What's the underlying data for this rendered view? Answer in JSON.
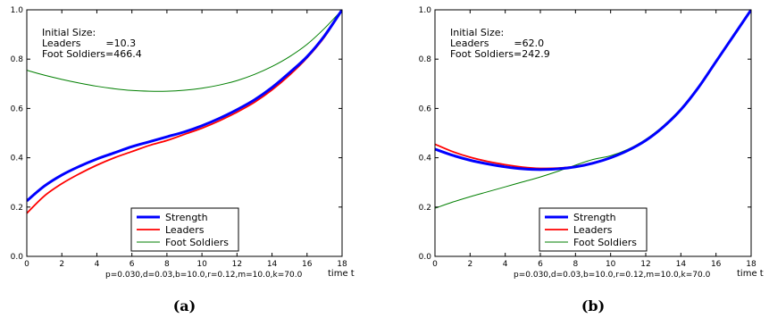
{
  "chart_data": [
    {
      "type": "line",
      "caption": "(a)",
      "xlabel": "time t",
      "ylabel": "",
      "xlim": [
        0,
        18
      ],
      "ylim": [
        0,
        1.0
      ],
      "xticks": [
        0,
        2,
        4,
        6,
        8,
        10,
        12,
        14,
        16,
        18
      ],
      "yticks": [
        "0.0",
        "0.2",
        "0.4",
        "0.6",
        "0.8",
        "1.0"
      ],
      "grid": false,
      "legend_position": "bottom-center",
      "annotation": [
        "Initial Size:",
        "Leaders        =10.3",
        "Foot Soldiers=466.4"
      ],
      "parameters": "p=0.030,d=0.03,b=10.0,r=0.12,m=10.0,k=70.0",
      "x": [
        0,
        1,
        2,
        3,
        4,
        5,
        6,
        7,
        8,
        9,
        10,
        11,
        12,
        13,
        14,
        15,
        16,
        17,
        18
      ],
      "series": [
        {
          "name": "Strength",
          "color": "#0000ff",
          "width": 3,
          "values": [
            0.225,
            0.285,
            0.33,
            0.365,
            0.395,
            0.42,
            0.445,
            0.465,
            0.485,
            0.505,
            0.53,
            0.56,
            0.595,
            0.635,
            0.685,
            0.745,
            0.81,
            0.895,
            1.0
          ]
        },
        {
          "name": "Leaders",
          "color": "#ff0000",
          "width": 1.8,
          "values": [
            0.175,
            0.245,
            0.295,
            0.335,
            0.37,
            0.4,
            0.425,
            0.45,
            0.47,
            0.495,
            0.52,
            0.55,
            0.585,
            0.625,
            0.675,
            0.735,
            0.805,
            0.89,
            1.0
          ]
        },
        {
          "name": "Foot Soldiers",
          "color": "#007f00",
          "width": 1,
          "values": [
            0.755,
            0.735,
            0.718,
            0.703,
            0.69,
            0.68,
            0.673,
            0.67,
            0.67,
            0.674,
            0.682,
            0.695,
            0.713,
            0.738,
            0.77,
            0.81,
            0.86,
            0.925,
            1.0
          ]
        }
      ]
    },
    {
      "type": "line",
      "caption": "(b)",
      "xlabel": "time t",
      "ylabel": "",
      "xlim": [
        0,
        18
      ],
      "ylim": [
        0,
        1.0
      ],
      "xticks": [
        0,
        2,
        4,
        6,
        8,
        10,
        12,
        14,
        16,
        18
      ],
      "yticks": [
        "0.0",
        "0.2",
        "0.4",
        "0.6",
        "0.8",
        "1.0"
      ],
      "grid": false,
      "legend_position": "bottom-center",
      "annotation": [
        "Initial Size:",
        "Leaders        =62.0",
        "Foot Soldiers=242.9"
      ],
      "parameters": "p=0.030,d=0.03,b=10.0,r=0.12,m=10.0,k=70.0",
      "x": [
        0,
        1,
        2,
        3,
        4,
        5,
        6,
        7,
        8,
        9,
        10,
        11,
        12,
        13,
        14,
        15,
        16,
        17,
        18
      ],
      "series": [
        {
          "name": "Strength",
          "color": "#0000ff",
          "width": 3,
          "values": [
            0.435,
            0.41,
            0.39,
            0.375,
            0.363,
            0.355,
            0.352,
            0.355,
            0.363,
            0.378,
            0.4,
            0.43,
            0.47,
            0.525,
            0.595,
            0.685,
            0.79,
            0.895,
            1.0
          ]
        },
        {
          "name": "Leaders",
          "color": "#ff0000",
          "width": 1.8,
          "values": [
            0.455,
            0.425,
            0.402,
            0.385,
            0.372,
            0.362,
            0.357,
            0.358,
            0.365,
            0.38,
            0.4,
            0.43,
            0.47,
            0.525,
            0.595,
            0.683,
            0.788,
            0.893,
            1.0
          ]
        },
        {
          "name": "Foot Soldiers",
          "color": "#007f00",
          "width": 1,
          "values": [
            0.195,
            0.22,
            0.242,
            0.262,
            0.282,
            0.302,
            0.322,
            0.345,
            0.37,
            0.393,
            0.408,
            0.435,
            0.475,
            0.53,
            0.6,
            0.688,
            0.792,
            0.897,
            1.0
          ]
        }
      ]
    }
  ]
}
